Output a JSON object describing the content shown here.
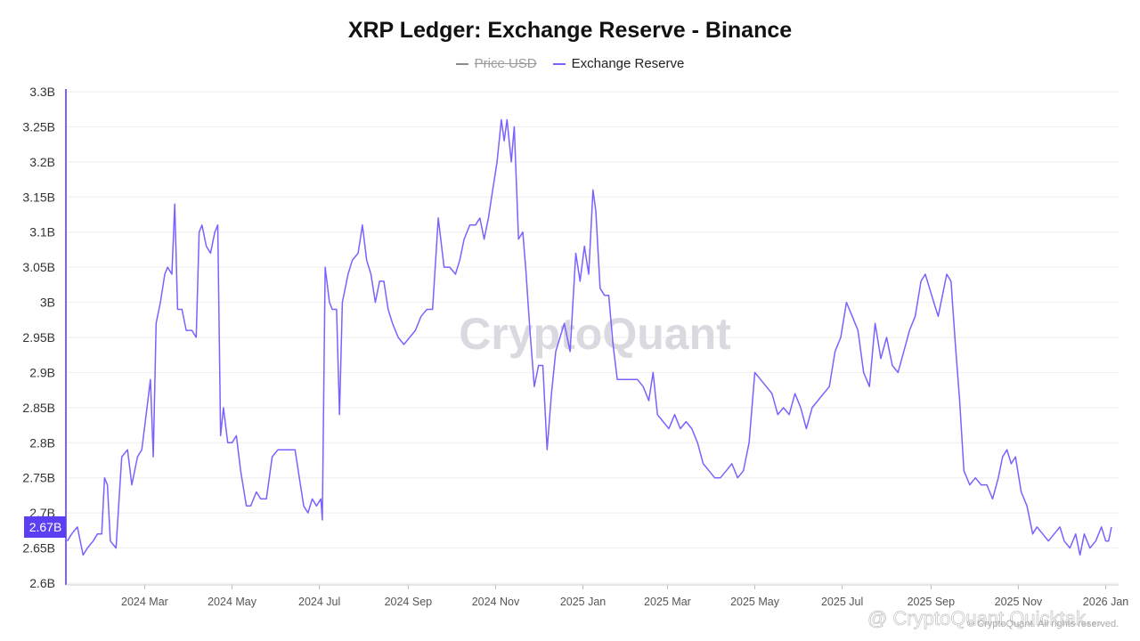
{
  "title": "XRP Ledger: Exchange Reserve - Binance",
  "legend": [
    {
      "name": "Price USD",
      "color": "#8a8a8a",
      "hidden": true
    },
    {
      "name": "Exchange Reserve",
      "color": "#7b61ff",
      "hidden": false
    }
  ],
  "watermark": "CryptoQuant",
  "credit": "@ CryptoQuant Quicktak...",
  "credit_small": "© CryptoQuant. All rights reserved.",
  "current_value_label": "2.67B",
  "colors": {
    "series": "#7b61ff",
    "label_bg": "#5b3ff2",
    "axis": "#7b61ff",
    "grid": "#eeeeee"
  },
  "chart_data": {
    "type": "line",
    "title": "XRP Ledger: Exchange Reserve - Binance",
    "xlabel": "",
    "ylabel": "",
    "y_unit": "B",
    "ylim": [
      2.6,
      3.3
    ],
    "yticks": [
      2.6,
      2.65,
      2.7,
      2.75,
      2.8,
      2.85,
      2.9,
      2.95,
      3.0,
      3.05,
      3.1,
      3.15,
      3.2,
      3.25,
      3.3
    ],
    "ytick_labels": [
      "2.6B",
      "2.65B",
      "2.7B",
      "2.75B",
      "2.8B",
      "2.85B",
      "2.9B",
      "2.95B",
      "3B",
      "3.05B",
      "3.1B",
      "3.15B",
      "3.2B",
      "3.25B",
      "3.3B"
    ],
    "xlim": [
      "2024-01-06",
      "2026-01-10"
    ],
    "xticks": [
      {
        "date": "2024-03-01",
        "label": "2024 Mar"
      },
      {
        "date": "2024-05-01",
        "label": "2024 May"
      },
      {
        "date": "2024-07-01",
        "label": "2024 Jul"
      },
      {
        "date": "2024-09-01",
        "label": "2024 Sep"
      },
      {
        "date": "2024-11-01",
        "label": "2024 Nov"
      },
      {
        "date": "2025-01-01",
        "label": "2025 Jan"
      },
      {
        "date": "2025-03-01",
        "label": "2025 Mar"
      },
      {
        "date": "2025-05-01",
        "label": "2025 May"
      },
      {
        "date": "2025-07-01",
        "label": "2025 Jul"
      },
      {
        "date": "2025-09-01",
        "label": "2025 Sep"
      },
      {
        "date": "2025-11-01",
        "label": "2025 Nov"
      },
      {
        "date": "2026-01-01",
        "label": "2026 Jan"
      }
    ],
    "grid": true,
    "legend_position": "top-center",
    "series": [
      {
        "name": "Exchange Reserve",
        "color": "#7b61ff",
        "points": [
          [
            "2024-01-07",
            2.66
          ],
          [
            "2024-01-10",
            2.67
          ],
          [
            "2024-01-14",
            2.68
          ],
          [
            "2024-01-18",
            2.64
          ],
          [
            "2024-01-21",
            2.65
          ],
          [
            "2024-01-25",
            2.66
          ],
          [
            "2024-01-28",
            2.67
          ],
          [
            "2024-01-31",
            2.67
          ],
          [
            "2024-02-02",
            2.75
          ],
          [
            "2024-02-04",
            2.74
          ],
          [
            "2024-02-06",
            2.66
          ],
          [
            "2024-02-10",
            2.65
          ],
          [
            "2024-02-14",
            2.78
          ],
          [
            "2024-02-18",
            2.79
          ],
          [
            "2024-02-21",
            2.74
          ],
          [
            "2024-02-25",
            2.78
          ],
          [
            "2024-02-28",
            2.79
          ],
          [
            "2024-03-02",
            2.84
          ],
          [
            "2024-03-05",
            2.89
          ],
          [
            "2024-03-07",
            2.78
          ],
          [
            "2024-03-09",
            2.97
          ],
          [
            "2024-03-12",
            3.0
          ],
          [
            "2024-03-15",
            3.04
          ],
          [
            "2024-03-17",
            3.05
          ],
          [
            "2024-03-20",
            3.04
          ],
          [
            "2024-03-22",
            3.14
          ],
          [
            "2024-03-24",
            2.99
          ],
          [
            "2024-03-27",
            2.99
          ],
          [
            "2024-03-30",
            2.96
          ],
          [
            "2024-04-03",
            2.96
          ],
          [
            "2024-04-06",
            2.95
          ],
          [
            "2024-04-08",
            3.1
          ],
          [
            "2024-04-10",
            3.11
          ],
          [
            "2024-04-13",
            3.08
          ],
          [
            "2024-04-16",
            3.07
          ],
          [
            "2024-04-19",
            3.1
          ],
          [
            "2024-04-21",
            3.11
          ],
          [
            "2024-04-23",
            2.81
          ],
          [
            "2024-04-25",
            2.85
          ],
          [
            "2024-04-28",
            2.8
          ],
          [
            "2024-05-01",
            2.8
          ],
          [
            "2024-05-04",
            2.81
          ],
          [
            "2024-05-07",
            2.76
          ],
          [
            "2024-05-11",
            2.71
          ],
          [
            "2024-05-14",
            2.71
          ],
          [
            "2024-05-18",
            2.73
          ],
          [
            "2024-05-21",
            2.72
          ],
          [
            "2024-05-25",
            2.72
          ],
          [
            "2024-05-29",
            2.78
          ],
          [
            "2024-06-02",
            2.79
          ],
          [
            "2024-06-06",
            2.79
          ],
          [
            "2024-06-10",
            2.79
          ],
          [
            "2024-06-14",
            2.79
          ],
          [
            "2024-06-17",
            2.75
          ],
          [
            "2024-06-20",
            2.71
          ],
          [
            "2024-06-23",
            2.7
          ],
          [
            "2024-06-26",
            2.72
          ],
          [
            "2024-06-29",
            2.71
          ],
          [
            "2024-07-02",
            2.72
          ],
          [
            "2024-07-03",
            2.69
          ],
          [
            "2024-07-05",
            3.05
          ],
          [
            "2024-07-08",
            3.0
          ],
          [
            "2024-07-10",
            2.99
          ],
          [
            "2024-07-13",
            2.99
          ],
          [
            "2024-07-15",
            2.84
          ],
          [
            "2024-07-17",
            3.0
          ],
          [
            "2024-07-21",
            3.04
          ],
          [
            "2024-07-24",
            3.06
          ],
          [
            "2024-07-28",
            3.07
          ],
          [
            "2024-07-31",
            3.11
          ],
          [
            "2024-08-03",
            3.06
          ],
          [
            "2024-08-06",
            3.04
          ],
          [
            "2024-08-09",
            3.0
          ],
          [
            "2024-08-12",
            3.03
          ],
          [
            "2024-08-15",
            3.03
          ],
          [
            "2024-08-18",
            2.99
          ],
          [
            "2024-08-21",
            2.97
          ],
          [
            "2024-08-25",
            2.95
          ],
          [
            "2024-08-29",
            2.94
          ],
          [
            "2024-09-02",
            2.95
          ],
          [
            "2024-09-06",
            2.96
          ],
          [
            "2024-09-10",
            2.98
          ],
          [
            "2024-09-14",
            2.99
          ],
          [
            "2024-09-18",
            2.99
          ],
          [
            "2024-09-22",
            3.12
          ],
          [
            "2024-09-26",
            3.05
          ],
          [
            "2024-09-30",
            3.05
          ],
          [
            "2024-10-04",
            3.04
          ],
          [
            "2024-10-07",
            3.06
          ],
          [
            "2024-10-10",
            3.09
          ],
          [
            "2024-10-14",
            3.11
          ],
          [
            "2024-10-18",
            3.11
          ],
          [
            "2024-10-21",
            3.12
          ],
          [
            "2024-10-24",
            3.09
          ],
          [
            "2024-10-27",
            3.12
          ],
          [
            "2024-10-30",
            3.16
          ],
          [
            "2024-11-02",
            3.2
          ],
          [
            "2024-11-05",
            3.26
          ],
          [
            "2024-11-07",
            3.23
          ],
          [
            "2024-11-09",
            3.26
          ],
          [
            "2024-11-12",
            3.2
          ],
          [
            "2024-11-14",
            3.25
          ],
          [
            "2024-11-17",
            3.09
          ],
          [
            "2024-11-20",
            3.1
          ],
          [
            "2024-11-22",
            3.05
          ],
          [
            "2024-11-25",
            2.96
          ],
          [
            "2024-11-28",
            2.88
          ],
          [
            "2024-12-01",
            2.91
          ],
          [
            "2024-12-04",
            2.91
          ],
          [
            "2024-12-07",
            2.79
          ],
          [
            "2024-12-10",
            2.87
          ],
          [
            "2024-12-13",
            2.93
          ],
          [
            "2024-12-16",
            2.95
          ],
          [
            "2024-12-19",
            2.97
          ],
          [
            "2024-12-23",
            2.93
          ],
          [
            "2024-12-27",
            3.07
          ],
          [
            "2024-12-30",
            3.03
          ],
          [
            "2025-01-02",
            3.08
          ],
          [
            "2025-01-05",
            3.04
          ],
          [
            "2025-01-08",
            3.16
          ],
          [
            "2025-01-10",
            3.13
          ],
          [
            "2025-01-13",
            3.02
          ],
          [
            "2025-01-16",
            3.01
          ],
          [
            "2025-01-19",
            3.01
          ],
          [
            "2025-01-22",
            2.94
          ],
          [
            "2025-01-25",
            2.89
          ],
          [
            "2025-01-30",
            2.89
          ],
          [
            "2025-02-04",
            2.89
          ],
          [
            "2025-02-08",
            2.89
          ],
          [
            "2025-02-12",
            2.88
          ],
          [
            "2025-02-16",
            2.86
          ],
          [
            "2025-02-19",
            2.9
          ],
          [
            "2025-02-22",
            2.84
          ],
          [
            "2025-02-26",
            2.83
          ],
          [
            "2025-03-02",
            2.82
          ],
          [
            "2025-03-06",
            2.84
          ],
          [
            "2025-03-10",
            2.82
          ],
          [
            "2025-03-14",
            2.83
          ],
          [
            "2025-03-18",
            2.82
          ],
          [
            "2025-03-22",
            2.8
          ],
          [
            "2025-03-26",
            2.77
          ],
          [
            "2025-03-30",
            2.76
          ],
          [
            "2025-04-03",
            2.75
          ],
          [
            "2025-04-07",
            2.75
          ],
          [
            "2025-04-11",
            2.76
          ],
          [
            "2025-04-15",
            2.77
          ],
          [
            "2025-04-19",
            2.75
          ],
          [
            "2025-04-23",
            2.76
          ],
          [
            "2025-04-27",
            2.8
          ],
          [
            "2025-05-01",
            2.9
          ],
          [
            "2025-05-05",
            2.89
          ],
          [
            "2025-05-09",
            2.88
          ],
          [
            "2025-05-13",
            2.87
          ],
          [
            "2025-05-17",
            2.84
          ],
          [
            "2025-05-21",
            2.85
          ],
          [
            "2025-05-25",
            2.84
          ],
          [
            "2025-05-29",
            2.87
          ],
          [
            "2025-06-02",
            2.85
          ],
          [
            "2025-06-06",
            2.82
          ],
          [
            "2025-06-10",
            2.85
          ],
          [
            "2025-06-14",
            2.86
          ],
          [
            "2025-06-18",
            2.87
          ],
          [
            "2025-06-22",
            2.88
          ],
          [
            "2025-06-26",
            2.93
          ],
          [
            "2025-06-30",
            2.95
          ],
          [
            "2025-07-04",
            3.0
          ],
          [
            "2025-07-08",
            2.98
          ],
          [
            "2025-07-12",
            2.96
          ],
          [
            "2025-07-16",
            2.9
          ],
          [
            "2025-07-20",
            2.88
          ],
          [
            "2025-07-24",
            2.97
          ],
          [
            "2025-07-28",
            2.92
          ],
          [
            "2025-08-01",
            2.95
          ],
          [
            "2025-08-05",
            2.91
          ],
          [
            "2025-08-09",
            2.9
          ],
          [
            "2025-08-13",
            2.93
          ],
          [
            "2025-08-17",
            2.96
          ],
          [
            "2025-08-21",
            2.98
          ],
          [
            "2025-08-25",
            3.03
          ],
          [
            "2025-08-28",
            3.04
          ],
          [
            "2025-08-31",
            3.02
          ],
          [
            "2025-09-03",
            3.0
          ],
          [
            "2025-09-06",
            2.98
          ],
          [
            "2025-09-09",
            3.01
          ],
          [
            "2025-09-12",
            3.04
          ],
          [
            "2025-09-15",
            3.03
          ],
          [
            "2025-09-18",
            2.94
          ],
          [
            "2025-09-21",
            2.86
          ],
          [
            "2025-09-24",
            2.76
          ],
          [
            "2025-09-28",
            2.74
          ],
          [
            "2025-10-02",
            2.75
          ],
          [
            "2025-10-06",
            2.74
          ],
          [
            "2025-10-10",
            2.74
          ],
          [
            "2025-10-14",
            2.72
          ],
          [
            "2025-10-18",
            2.75
          ],
          [
            "2025-10-21",
            2.78
          ],
          [
            "2025-10-24",
            2.79
          ],
          [
            "2025-10-27",
            2.77
          ],
          [
            "2025-10-30",
            2.78
          ],
          [
            "2025-11-03",
            2.73
          ],
          [
            "2025-11-07",
            2.71
          ],
          [
            "2025-11-11",
            2.67
          ],
          [
            "2025-11-14",
            2.68
          ],
          [
            "2025-11-18",
            2.67
          ],
          [
            "2025-11-22",
            2.66
          ],
          [
            "2025-11-26",
            2.67
          ],
          [
            "2025-11-30",
            2.68
          ],
          [
            "2025-12-03",
            2.66
          ],
          [
            "2025-12-07",
            2.65
          ],
          [
            "2025-12-11",
            2.67
          ],
          [
            "2025-12-14",
            2.64
          ],
          [
            "2025-12-17",
            2.67
          ],
          [
            "2025-12-21",
            2.65
          ],
          [
            "2025-12-25",
            2.66
          ],
          [
            "2025-12-29",
            2.68
          ],
          [
            "2026-01-01",
            2.66
          ],
          [
            "2026-01-03",
            2.66
          ],
          [
            "2026-01-05",
            2.68
          ]
        ]
      }
    ]
  }
}
